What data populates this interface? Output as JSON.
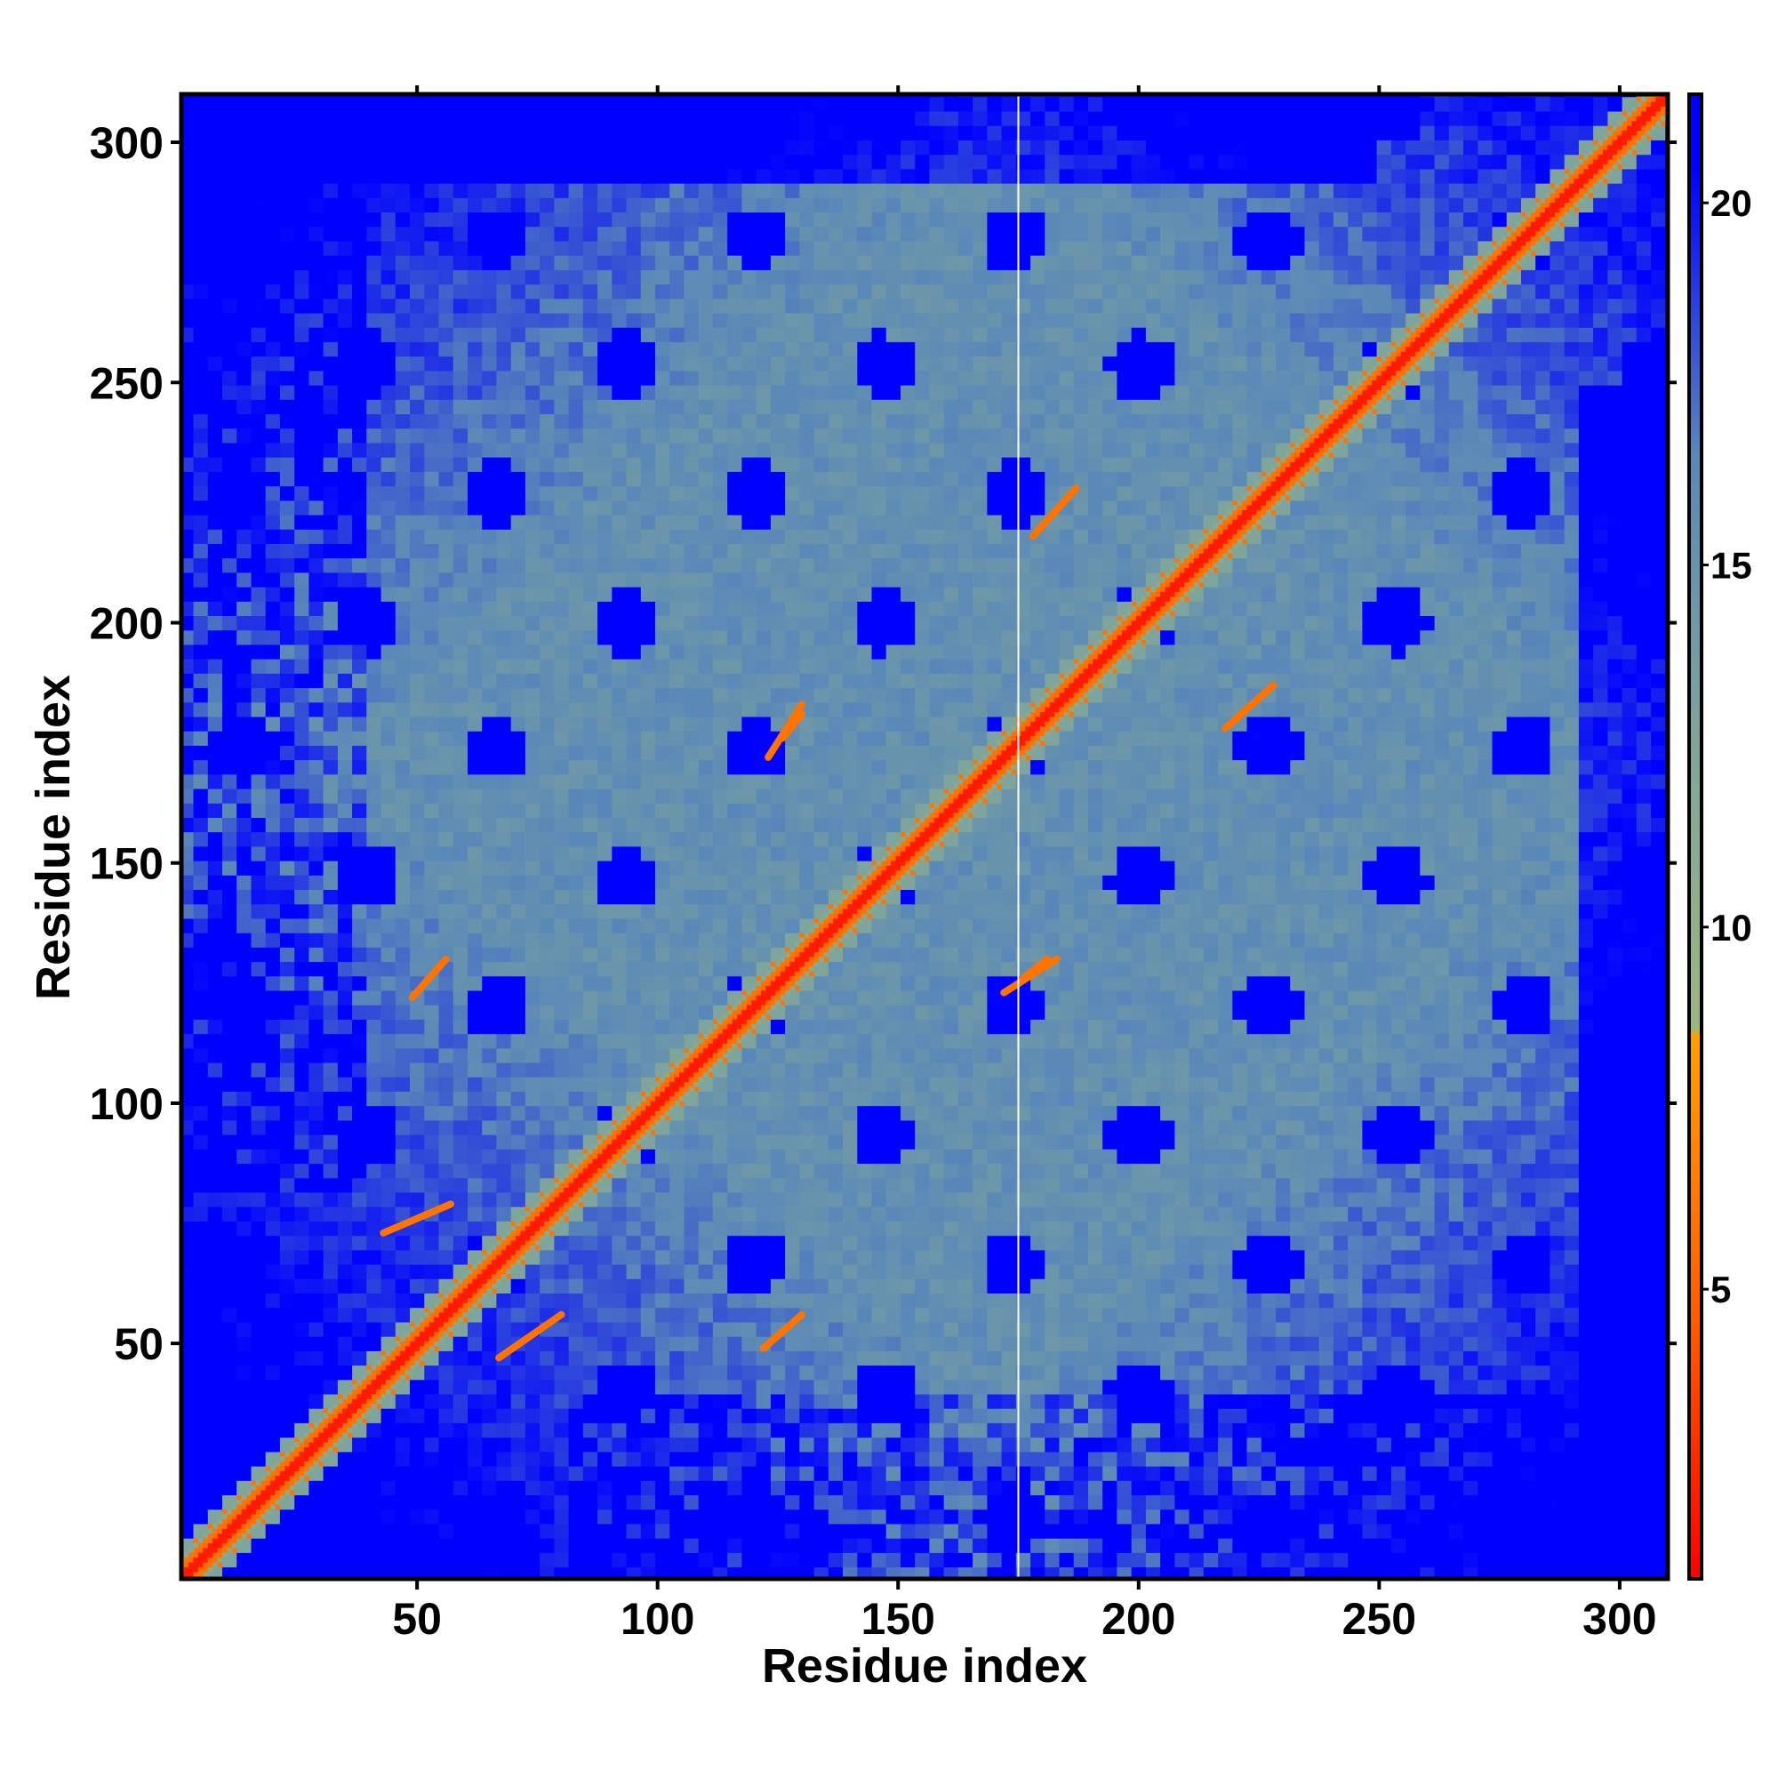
{
  "chart_data": {
    "type": "heatmap",
    "title": "",
    "xlabel": "Residue index",
    "ylabel": "Residue index",
    "xlim": [
      1,
      310
    ],
    "ylim": [
      1,
      310
    ],
    "x_ticks": [
      50,
      100,
      150,
      200,
      250,
      300
    ],
    "y_ticks": [
      50,
      100,
      150,
      200,
      250,
      300
    ],
    "x_tick_labels": [
      "50",
      "100",
      "150",
      "200",
      "250",
      "300"
    ],
    "y_tick_labels": [
      "50",
      "100",
      "150",
      "200",
      "250",
      "300"
    ],
    "colorbar": {
      "range": [
        1,
        21.5
      ],
      "ticks": [
        5,
        10,
        15,
        20
      ],
      "tick_labels": [
        "5",
        "10",
        "15",
        "20"
      ],
      "color_stops": [
        {
          "value": 1,
          "color": "#ff0000"
        },
        {
          "value": 4.5,
          "color": "#ff5a00"
        },
        {
          "value": 8.5,
          "color": "#ffa000"
        },
        {
          "value": 8.6,
          "color": "#9bb77f"
        },
        {
          "value": 12.5,
          "color": "#7fa59a"
        },
        {
          "value": 16.5,
          "color": "#5a88b8"
        },
        {
          "value": 20.5,
          "color": "#0000ff"
        },
        {
          "value": 21.5,
          "color": "#0000ff"
        }
      ]
    },
    "matrix_description": "Residue-residue distance map (Angstrom), symmetric; near-zero distances along the main diagonal; blank column near residue 175",
    "gap_residue": 175,
    "contact_segments": [
      {
        "from": [
          43,
          73
        ],
        "to": [
          57,
          79
        ],
        "value": 6
      },
      {
        "from": [
          67,
          47
        ],
        "to": [
          80,
          56
        ],
        "value": 6
      },
      {
        "from": [
          123,
          172
        ],
        "to": [
          130,
          183
        ],
        "value": 6
      },
      {
        "from": [
          172,
          123
        ],
        "to": [
          183,
          130
        ],
        "value": 6
      },
      {
        "from": [
          176,
          126
        ],
        "to": [
          181,
          130
        ],
        "value": 6
      },
      {
        "from": [
          126,
          176
        ],
        "to": [
          130,
          181
        ],
        "value": 6
      },
      {
        "from": [
          178,
          218
        ],
        "to": [
          187,
          228
        ],
        "value": 6
      },
      {
        "from": [
          218,
          178
        ],
        "to": [
          228,
          187
        ],
        "value": 6
      },
      {
        "from": [
          122,
          49
        ],
        "to": [
          130,
          56
        ],
        "value": 6
      },
      {
        "from": [
          49,
          122
        ],
        "to": [
          56,
          130
        ],
        "value": 6
      }
    ]
  }
}
